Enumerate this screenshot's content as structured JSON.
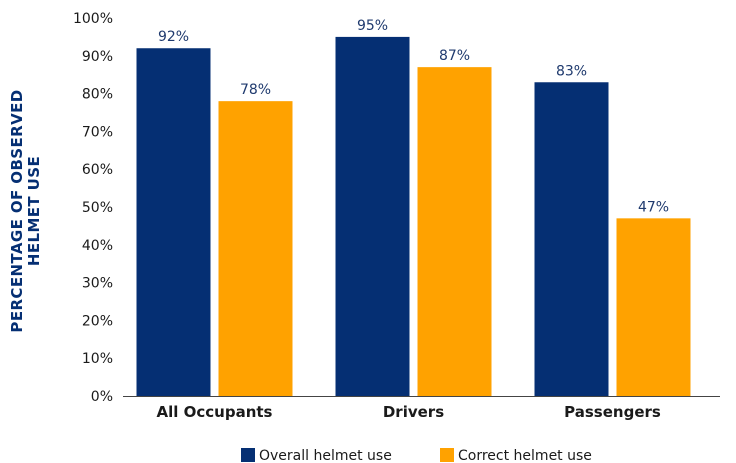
{
  "chart_data": {
    "type": "bar",
    "categories": [
      "All Occupants",
      "Drivers",
      "Passengers"
    ],
    "series": [
      {
        "name": "Overall helmet use",
        "values": [
          92,
          95,
          83
        ],
        "color": "#052f73"
      },
      {
        "name": "Correct helmet use",
        "values": [
          78,
          87,
          47
        ],
        "color": "#ffa200"
      }
    ],
    "value_suffix": "%",
    "ylabel_lines": [
      "PERCENTAGE OF OBSERVED",
      "HELMET USE"
    ],
    "ylabel_color": "#052f73",
    "data_label_color": "#1f3a6e",
    "ylim": [
      0,
      100
    ],
    "yticks": [
      "0%",
      "10%",
      "20%",
      "30%",
      "40%",
      "50%",
      "60%",
      "70%",
      "80%",
      "90%",
      "100%"
    ],
    "grid": false,
    "legend_position": "bottom-center"
  }
}
